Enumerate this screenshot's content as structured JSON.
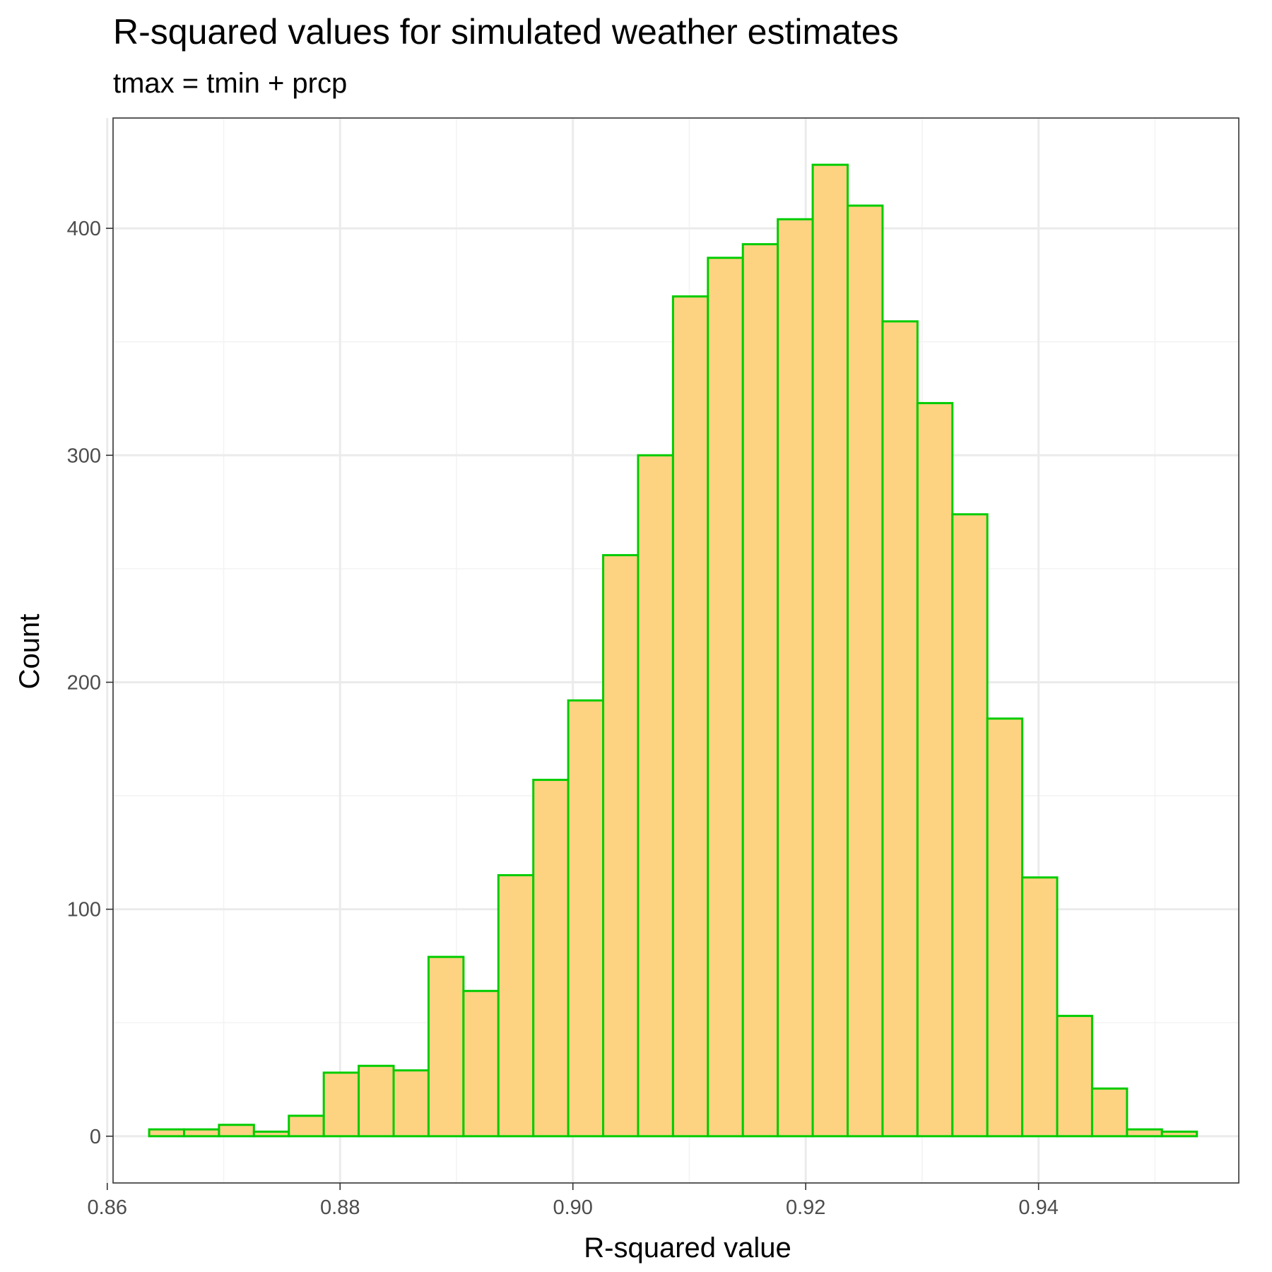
{
  "chart_data": {
    "type": "bar",
    "title": "R-squared values for simulated weather estimates",
    "subtitle": "tmax = tmin + prcp",
    "xlabel": "R-squared value",
    "ylabel": "Count",
    "xlim": [
      0.8605,
      0.9572
    ],
    "ylim": [
      -20.6,
      448.6
    ],
    "x_ticks": [
      {
        "value": 0.86,
        "label": "0.86"
      },
      {
        "value": 0.88,
        "label": "0.88"
      },
      {
        "value": 0.9,
        "label": "0.90"
      },
      {
        "value": 0.92,
        "label": "0.92"
      },
      {
        "value": 0.94,
        "label": "0.94"
      }
    ],
    "y_ticks": [
      {
        "value": 0,
        "label": "0"
      },
      {
        "value": 100,
        "label": "100"
      },
      {
        "value": 200,
        "label": "200"
      },
      {
        "value": 300,
        "label": "300"
      },
      {
        "value": 400,
        "label": "400"
      }
    ],
    "grid": true,
    "bin_width": 0.003,
    "bin_start": 0.8636,
    "values": [
      3,
      3,
      5,
      2,
      9,
      28,
      31,
      29,
      79,
      64,
      115,
      157,
      192,
      256,
      300,
      370,
      387,
      393,
      404,
      428,
      410,
      359,
      323,
      274,
      184,
      114,
      53,
      21,
      3,
      2
    ],
    "fill_color": "#FDD382",
    "outline_color": "#00CC00",
    "panel_border_color": "#333333",
    "grid_major_color": "#EBEBEB",
    "grid_minor_color": "#F3F3F3",
    "tick_label_color": "#4D4D4D"
  }
}
